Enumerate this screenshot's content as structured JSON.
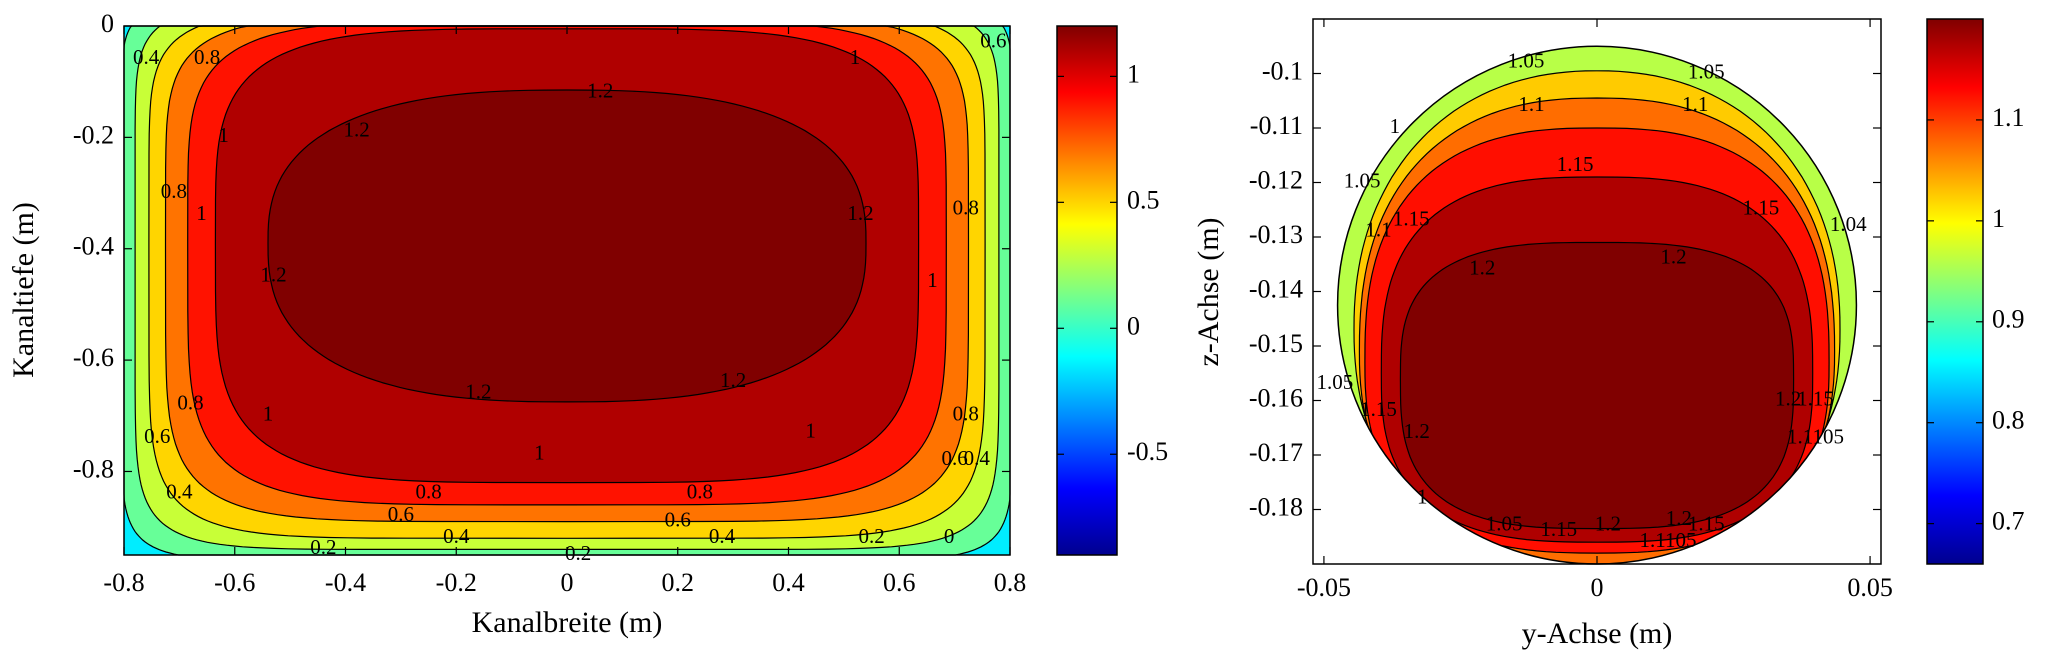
{
  "chart_data": [
    {
      "type": "heatmap",
      "subtype": "filled-contour",
      "title": "",
      "xlabel": "Kanalbreite (m)",
      "ylabel": "Kanaltiefe (m)",
      "xlim": [
        -0.8,
        0.8
      ],
      "ylim": [
        -0.95,
        0
      ],
      "x_ticks": [
        -0.8,
        -0.6,
        -0.4,
        -0.2,
        0,
        0.2,
        0.4,
        0.6,
        0.8
      ],
      "x_tick_labels": [
        "-0.8",
        "-0.6",
        "-0.4",
        "-0.2",
        "0",
        "0.2",
        "0.4",
        "0.6",
        "0.8"
      ],
      "y_ticks": [
        0,
        -0.2,
        -0.4,
        -0.6,
        -0.8
      ],
      "y_tick_labels": [
        "0",
        "-0.2",
        "-0.4",
        "-0.6",
        "-0.8"
      ],
      "levels": [
        0,
        0.2,
        0.4,
        0.6,
        0.8,
        1,
        1.2
      ],
      "max_value": 1.2,
      "color_range": [
        -0.9,
        1.2
      ],
      "colormap": "jet",
      "grid": false,
      "colorbar": {
        "ticks": [
          1,
          0.5,
          0,
          -0.5
        ],
        "tick_labels": [
          "1",
          "0.5",
          "0",
          "-0.5"
        ],
        "range": [
          -0.9,
          1.2
        ]
      },
      "contour_labels": [
        {
          "text": "1.2",
          "x": 0.06,
          "y": -0.12
        },
        {
          "text": "1.2",
          "x": -0.38,
          "y": -0.19
        },
        {
          "text": "1.2",
          "x": 0.53,
          "y": -0.34
        },
        {
          "text": "1.2",
          "x": -0.53,
          "y": -0.45
        },
        {
          "text": "1.2",
          "x": -0.16,
          "y": -0.66
        },
        {
          "text": "1.2",
          "x": 0.3,
          "y": -0.64
        },
        {
          "text": "1",
          "x": 0.52,
          "y": -0.06
        },
        {
          "text": "1",
          "x": -0.62,
          "y": -0.2
        },
        {
          "text": "1",
          "x": -0.66,
          "y": -0.34
        },
        {
          "text": "1",
          "x": 0.66,
          "y": -0.46
        },
        {
          "text": "1",
          "x": -0.54,
          "y": -0.7
        },
        {
          "text": "1",
          "x": 0.44,
          "y": -0.73
        },
        {
          "text": "1",
          "x": -0.05,
          "y": -0.77
        },
        {
          "text": "0.8",
          "x": -0.65,
          "y": -0.06
        },
        {
          "text": "0.8",
          "x": -0.71,
          "y": -0.3
        },
        {
          "text": "0.8",
          "x": 0.72,
          "y": -0.33
        },
        {
          "text": "0.8",
          "x": 0.72,
          "y": -0.7
        },
        {
          "text": "0.8",
          "x": -0.68,
          "y": -0.68
        },
        {
          "text": "0.8",
          "x": -0.25,
          "y": -0.84
        },
        {
          "text": "0.8",
          "x": 0.24,
          "y": -0.84
        },
        {
          "text": "0.6",
          "x": -0.74,
          "y": -0.74
        },
        {
          "text": "0.6",
          "x": 0.7,
          "y": -0.78
        },
        {
          "text": "0.6",
          "x": -0.3,
          "y": -0.88
        },
        {
          "text": "0.6",
          "x": 0.2,
          "y": -0.89
        },
        {
          "text": "0.4",
          "x": -0.76,
          "y": -0.06
        },
        {
          "text": "0.4",
          "x": -0.7,
          "y": -0.84
        },
        {
          "text": "0.4",
          "x": -0.2,
          "y": -0.92
        },
        {
          "text": "0.4",
          "x": 0.28,
          "y": -0.92
        },
        {
          "text": "0.4",
          "x": 0.74,
          "y": -0.78
        },
        {
          "text": "0.2",
          "x": -0.44,
          "y": -0.94
        },
        {
          "text": "0.2",
          "x": 0.55,
          "y": -0.92
        },
        {
          "text": "0.2",
          "x": 0.02,
          "y": -0.95
        },
        {
          "text": "0",
          "x": 0.69,
          "y": -0.92
        },
        {
          "text": "0.6",
          "x": 0.77,
          "y": -0.03
        }
      ]
    },
    {
      "type": "heatmap",
      "subtype": "filled-contour",
      "title": "",
      "xlabel": "y-Achse (m)",
      "ylabel": "z-Achse (m)",
      "xlim": [
        -0.052,
        0.052
      ],
      "ylim": [
        -0.19,
        -0.09
      ],
      "x_ticks": [
        -0.05,
        0,
        0.05
      ],
      "x_tick_labels": [
        "-0.05",
        "0",
        "0.05"
      ],
      "y_ticks": [
        -0.1,
        -0.11,
        -0.12,
        -0.13,
        -0.14,
        -0.15,
        -0.16,
        -0.17,
        -0.18
      ],
      "y_tick_labels": [
        "-0.1",
        "-0.11",
        "-0.12",
        "-0.13",
        "-0.14",
        "-0.15",
        "-0.16",
        "-0.17",
        "-0.18"
      ],
      "levels": [
        1,
        1.05,
        1.1,
        1.15,
        1.2
      ],
      "max_value": 1.2,
      "color_range": [
        0.66,
        1.2
      ],
      "colormap": "jet",
      "grid": false,
      "colorbar": {
        "ticks": [
          1.1,
          1,
          0.9,
          0.8,
          0.7
        ],
        "tick_labels": [
          "1.1",
          "1",
          "0.9",
          "0.8",
          "0.7"
        ],
        "range": [
          0.66,
          1.2
        ]
      },
      "contour_labels": [
        {
          "text": "1.05",
          "x": -0.013,
          "y": -0.098
        },
        {
          "text": "1.05",
          "x": 0.02,
          "y": -0.1
        },
        {
          "text": "1.1",
          "x": -0.012,
          "y": -0.106
        },
        {
          "text": "1.1",
          "x": 0.018,
          "y": -0.106
        },
        {
          "text": "1.15",
          "x": -0.004,
          "y": -0.117
        },
        {
          "text": "1.15",
          "x": 0.03,
          "y": -0.125
        },
        {
          "text": "1.15",
          "x": -0.034,
          "y": -0.127
        },
        {
          "text": "1.05",
          "x": -0.043,
          "y": -0.12
        },
        {
          "text": "1",
          "x": -0.037,
          "y": -0.11
        },
        {
          "text": "1.1",
          "x": -0.04,
          "y": -0.129
        },
        {
          "text": "1.2",
          "x": -0.021,
          "y": -0.136
        },
        {
          "text": "1.2",
          "x": 0.014,
          "y": -0.134
        },
        {
          "text": "1.04",
          "x": 0.046,
          "y": -0.128
        },
        {
          "text": "1.2",
          "x": 0.035,
          "y": -0.16
        },
        {
          "text": "1.15",
          "x": 0.04,
          "y": -0.16
        },
        {
          "text": "1.2",
          "x": -0.033,
          "y": -0.166
        },
        {
          "text": "1.05",
          "x": -0.048,
          "y": -0.157
        },
        {
          "text": "1.15",
          "x": -0.04,
          "y": -0.162
        },
        {
          "text": "1.1105",
          "x": 0.04,
          "y": -0.167
        },
        {
          "text": "1",
          "x": -0.032,
          "y": -0.178
        },
        {
          "text": "1.05",
          "x": -0.017,
          "y": -0.183
        },
        {
          "text": "1.15",
          "x": -0.007,
          "y": -0.184
        },
        {
          "text": "1.2",
          "x": 0.002,
          "y": -0.183
        },
        {
          "text": "1.2",
          "x": 0.015,
          "y": -0.182
        },
        {
          "text": "1.15",
          "x": 0.02,
          "y": -0.183
        },
        {
          "text": "1.1105",
          "x": 0.013,
          "y": -0.186
        }
      ]
    }
  ]
}
